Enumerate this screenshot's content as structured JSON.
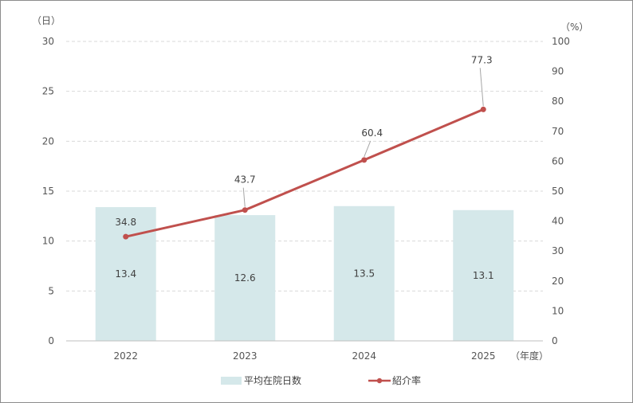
{
  "chart_data": {
    "type": "bar",
    "categories": [
      "2022",
      "2023",
      "2024",
      "2025"
    ],
    "series": [
      {
        "name": "平均在院日数",
        "type": "bar",
        "axis": "left",
        "values": [
          13.4,
          12.6,
          13.5,
          13.1
        ],
        "labels": [
          "13.4",
          "12.6",
          "13.5",
          "13.1"
        ],
        "color": "#d5e8ea"
      },
      {
        "name": "紹介率",
        "type": "line",
        "axis": "right",
        "values": [
          34.8,
          43.7,
          60.4,
          77.3
        ],
        "labels": [
          "34.8",
          "43.7",
          "60.4",
          "77.3"
        ],
        "color": "#c0504d"
      }
    ],
    "y_left": {
      "unit": "（日）",
      "min": 0,
      "max": 30,
      "ticks": [
        "0",
        "5",
        "10",
        "15",
        "20",
        "25",
        "30"
      ]
    },
    "y_right": {
      "unit": "（%）",
      "min": 0,
      "max": 100,
      "ticks": [
        "0",
        "10",
        "20",
        "30",
        "40",
        "50",
        "60",
        "70",
        "80",
        "90",
        "100"
      ]
    },
    "x_unit": "（年度）",
    "grid": "dashed-horizontal",
    "legend_position": "bottom"
  }
}
